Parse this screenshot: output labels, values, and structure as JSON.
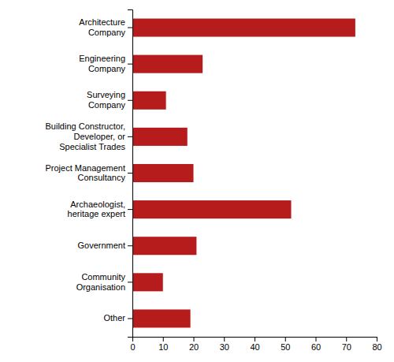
{
  "chart_data": {
    "type": "bar",
    "orientation": "horizontal",
    "categories": [
      "Other",
      "Community\nOrganisation",
      "Government",
      "Archaeologist,\nheritage expert",
      "Project Management\nConsultancy",
      "Building Constructor,\nDeveloper, or\nSpecialist Trades",
      "Surveying\nCompany",
      "Engineering\nCompany",
      "Architecture\nCompany"
    ],
    "values": [
      19,
      10,
      21,
      52,
      20,
      18,
      11,
      23,
      73
    ],
    "color": "#b71c1c",
    "xlim": [
      0,
      80
    ],
    "xticks": [
      0,
      10,
      20,
      30,
      40,
      50,
      60,
      70,
      80
    ],
    "grid": false
  }
}
